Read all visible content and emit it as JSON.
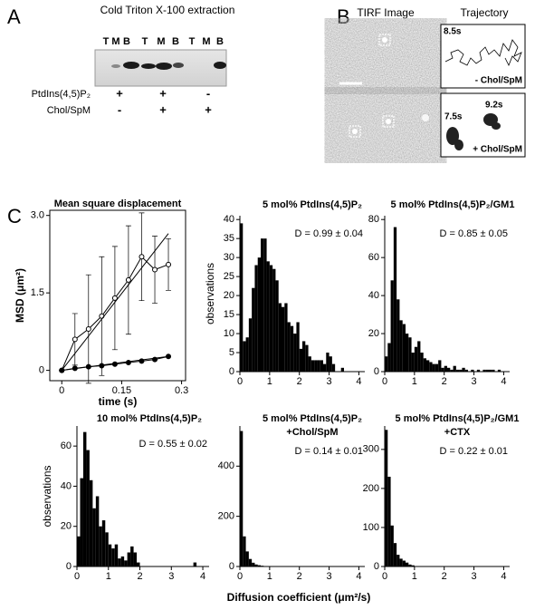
{
  "panel_a": {
    "label": "A",
    "title": "Cold Triton X-100 extraction",
    "lanes": [
      "T",
      "M",
      "B",
      "T",
      "M",
      "B",
      "T",
      "M",
      "B"
    ],
    "rows": [
      {
        "label": "PtdIns(4,5)P₂",
        "signs": [
          "+",
          "+",
          "-"
        ]
      },
      {
        "label": "Chol/SpM",
        "signs": [
          "-",
          "+",
          "+"
        ]
      }
    ]
  },
  "panel_b": {
    "label": "B",
    "columns": [
      "TIRF Image",
      "Trajectory"
    ],
    "times": [
      "8.5s",
      "7.5s",
      "9.2s"
    ],
    "conditions": [
      "- Chol/SpM",
      "+ Chol/SpM"
    ]
  },
  "panel_c": {
    "label": "C",
    "xlabel": "Diffusion coefficient (μm²/s)"
  },
  "chart_data": [
    {
      "type": "line",
      "title": "Mean square displacement",
      "xlabel": "time (s)",
      "ylabel": "MSD (μm²)",
      "x": [
        0,
        0.033,
        0.067,
        0.1,
        0.133,
        0.167,
        0.2,
        0.233,
        0.267
      ],
      "xlim": [
        -0.03,
        0.31
      ],
      "xticks": [
        0,
        0.15,
        0.3
      ],
      "ylim": [
        -0.2,
        3.1
      ],
      "yticks": [
        0,
        1.5,
        {
          "value": 3,
          "label": "3.0"
        }
      ],
      "series": [
        {
          "marker": "open",
          "color": "#000000",
          "values": [
            0,
            0.6,
            0.8,
            1.05,
            1.4,
            1.75,
            2.2,
            1.95,
            2.05
          ],
          "errors": [
            0,
            0.5,
            1.05,
            1.15,
            1.0,
            1.05,
            0.85,
            0.65,
            0.5
          ]
        },
        {
          "marker": "filled",
          "color": "#000000",
          "values": [
            0,
            0.04,
            0.07,
            0.09,
            0.12,
            0.15,
            0.18,
            0.21,
            0.27
          ]
        },
        {
          "marker": "none",
          "color": "#000000",
          "x": [
            0,
            0.267
          ],
          "values": [
            0,
            2.65
          ]
        },
        {
          "marker": "none",
          "color": "#000000",
          "x": [
            0,
            0.267
          ],
          "values": [
            0,
            0.27
          ]
        }
      ]
    },
    {
      "type": "histogram",
      "title": "5 mol% PtdIns(4,5)P₂",
      "annotation": "D = 0.99 ± 0.04",
      "ylabel": "observations",
      "color": "#000000",
      "bins": [
        0,
        0.1,
        0.2,
        0.3,
        0.4,
        0.5,
        0.6,
        0.7,
        0.8,
        0.9,
        1.0,
        1.1,
        1.2,
        1.3,
        1.4,
        1.5,
        1.6,
        1.7,
        1.8,
        1.9,
        2.0,
        2.1,
        2.2,
        2.3,
        2.4,
        2.5,
        2.6,
        2.7,
        2.8,
        2.9,
        3.0,
        3.1,
        3.2,
        3.3,
        3.4,
        3.5,
        3.6,
        3.7,
        3.8,
        3.9,
        4.0
      ],
      "values": [
        39,
        8,
        9,
        14,
        22,
        28,
        30,
        35,
        35,
        29,
        28,
        27,
        24,
        18,
        17,
        18,
        13,
        12,
        10,
        13,
        6,
        8,
        7,
        4,
        3,
        3,
        3,
        3,
        2,
        5,
        4,
        2,
        0,
        0,
        1,
        0,
        0,
        0,
        0,
        0
      ],
      "xlim": [
        0,
        4.2
      ],
      "xticks": [
        0,
        1,
        2,
        3,
        4
      ],
      "ylim": [
        0,
        41
      ],
      "yticks": [
        0,
        5,
        10,
        15,
        20,
        25,
        30,
        35,
        40
      ]
    },
    {
      "type": "histogram",
      "title": "5 mol% PtdIns(4,5)P₂/GM1",
      "annotation": "D = 0.85 ± 0.05",
      "color": "#000000",
      "bins": [
        0,
        0.1,
        0.2,
        0.3,
        0.4,
        0.5,
        0.6,
        0.7,
        0.8,
        0.9,
        1.0,
        1.1,
        1.2,
        1.3,
        1.4,
        1.5,
        1.6,
        1.7,
        1.8,
        1.9,
        2.0,
        2.1,
        2.2,
        2.3,
        2.4,
        2.5,
        2.6,
        2.7,
        2.8,
        2.9,
        3.0,
        3.1,
        3.2,
        3.3,
        3.4,
        3.5,
        3.6,
        3.7,
        3.8,
        3.9,
        4.0
      ],
      "values": [
        8,
        15,
        48,
        76,
        38,
        27,
        25,
        20,
        18,
        10,
        13,
        16,
        10,
        7,
        6,
        5,
        4,
        4,
        6,
        2,
        3,
        2,
        1,
        3,
        1,
        1,
        2,
        1,
        0,
        1,
        0,
        1,
        0,
        1,
        1,
        1,
        1,
        0,
        1,
        0
      ],
      "xlim": [
        0,
        4.2
      ],
      "xticks": [
        0,
        1,
        2,
        3,
        4
      ],
      "ylim": [
        0,
        82
      ],
      "yticks": [
        0,
        20,
        40,
        60,
        80
      ]
    },
    {
      "type": "histogram",
      "title": "10 mol% PtdIns(4,5)P₂",
      "annotation": "D = 0.55 ± 0.02",
      "ylabel": "observations",
      "color": "#000000",
      "bins": [
        0,
        0.1,
        0.2,
        0.3,
        0.4,
        0.5,
        0.6,
        0.7,
        0.8,
        0.9,
        1.0,
        1.1,
        1.2,
        1.3,
        1.4,
        1.5,
        1.6,
        1.7,
        1.8,
        1.9,
        2.0,
        2.1,
        2.2,
        2.3,
        2.4,
        2.5,
        2.6,
        2.7,
        2.8,
        2.9,
        3.0,
        3.1,
        3.2,
        3.3,
        3.4,
        3.5,
        3.6,
        3.7,
        3.8,
        3.9,
        4.0
      ],
      "values": [
        15,
        44,
        67,
        58,
        43,
        29,
        35,
        20,
        23,
        17,
        11,
        9,
        11,
        4,
        5,
        3,
        7,
        10,
        7,
        2,
        0,
        0,
        0,
        0,
        0,
        0,
        0,
        0,
        0,
        0,
        0,
        0,
        0,
        0,
        0,
        0,
        0,
        2,
        0,
        0
      ],
      "xlim": [
        0,
        4.2
      ],
      "xticks": [
        0,
        1,
        2,
        3,
        4
      ],
      "ylim": [
        0,
        70
      ],
      "yticks": [
        0,
        20,
        40,
        60
      ]
    },
    {
      "type": "histogram",
      "title": [
        "5 mol% PtdIns(4,5)P₂",
        "+Chol/SpM"
      ],
      "annotation": "D = 0.14 ± 0.01",
      "color": "#000000",
      "bins": [
        0,
        0.1,
        0.2,
        0.3,
        0.4,
        0.5,
        0.6,
        0.7,
        0.8,
        0.9,
        1.0
      ],
      "values": [
        540,
        120,
        60,
        30,
        15,
        8,
        5,
        3,
        1,
        1
      ],
      "xlim": [
        0,
        4.2
      ],
      "xticks": [
        0,
        1,
        2,
        3,
        4
      ],
      "ylim": [
        0,
        560
      ],
      "yticks": [
        0,
        200,
        400
      ]
    },
    {
      "type": "histogram",
      "title": [
        "5 mol% PtdIns(4,5)P₂/GM1",
        "+CTX"
      ],
      "annotation": "D = 0.22 ± 0.01",
      "color": "#000000",
      "bins": [
        0,
        0.1,
        0.2,
        0.3,
        0.4,
        0.5,
        0.6,
        0.7,
        0.8,
        0.9,
        1.0
      ],
      "values": [
        350,
        230,
        105,
        60,
        30,
        20,
        15,
        10,
        5,
        3
      ],
      "xlim": [
        0,
        4.2
      ],
      "xticks": [
        0,
        1,
        2,
        3,
        4
      ],
      "ylim": [
        0,
        360
      ],
      "yticks": [
        0,
        100,
        200,
        300
      ]
    }
  ]
}
